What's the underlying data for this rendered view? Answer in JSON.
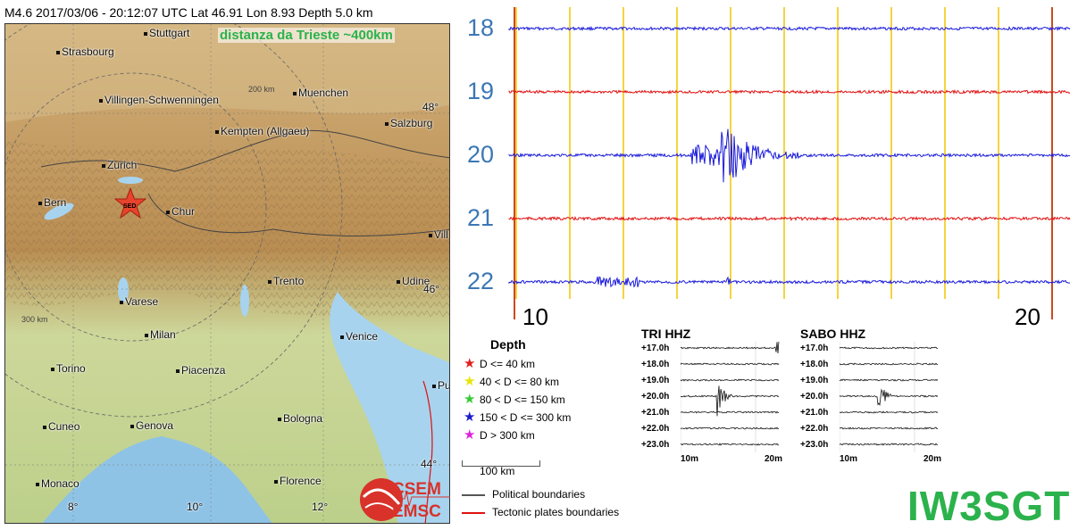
{
  "header": {
    "text": "M4.6  2017/03/06 - 20:12:07 UTC  Lat 46.91  Lon 8.93  Depth 5.0 km"
  },
  "map": {
    "distance_note": "distanza da Trieste ~400km",
    "epicenter_label": "SED",
    "ring_labels": [
      "200 km",
      "300 km"
    ],
    "cities": [
      {
        "name": "Stuttgart"
      },
      {
        "name": "Strasbourg"
      },
      {
        "name": "Muenchen"
      },
      {
        "name": "Villingen-Schwenningen"
      },
      {
        "name": "Salzburg"
      },
      {
        "name": "Kempten (Allgaeu)"
      },
      {
        "name": "Zurich"
      },
      {
        "name": "Bern"
      },
      {
        "name": "Chur"
      },
      {
        "name": "Trento"
      },
      {
        "name": "Udine"
      },
      {
        "name": "Varese"
      },
      {
        "name": "Milan"
      },
      {
        "name": "Venice"
      },
      {
        "name": "Torino"
      },
      {
        "name": "Piacenza"
      },
      {
        "name": "Cuneo"
      },
      {
        "name": "Genova"
      },
      {
        "name": "Bologna"
      },
      {
        "name": "Monaco"
      },
      {
        "name": "Florence"
      },
      {
        "name": "Vill"
      },
      {
        "name": "Pul"
      }
    ],
    "lat_labels": [
      "48°",
      "46°",
      "44°"
    ],
    "lon_labels": [
      "8°",
      "10°",
      "12°"
    ],
    "colors": {
      "land": "#c9a66b",
      "sea": "#a7d3ee",
      "epicenter": "#e8432c"
    }
  },
  "helicorder": {
    "hours": [
      "18",
      "19",
      "20",
      "21",
      "22"
    ],
    "minute_ticks": [
      "10",
      "20"
    ],
    "colors": {
      "blue": "#1a1adb",
      "red": "#e01010",
      "grid": "#f2c500",
      "edge": "#cc4a1f"
    }
  },
  "legend": {
    "title": "Depth",
    "rows": [
      {
        "label": "D <= 40 km",
        "color": "#e02020"
      },
      {
        "label": "40 < D <= 80 km",
        "color": "#f5f500"
      },
      {
        "label": "80 < D <= 150 km",
        "color": "#33cc33"
      },
      {
        "label": "150 < D <= 300 km",
        "color": "#1a1acc"
      },
      {
        "label": "D > 300 km",
        "color": "#dd22dd"
      }
    ],
    "scale": "100 km",
    "boundaries": [
      {
        "label": "Political boundaries",
        "color": "#555555"
      },
      {
        "label": "Tectonic plates boundaries",
        "color": "#e01010"
      }
    ]
  },
  "logo": {
    "line1": "CSEM",
    "line2": "EMSC"
  },
  "stations": [
    {
      "title": "TRI HHZ",
      "rows": [
        "+17.0h",
        "+18.0h",
        "+19.0h",
        "+20.0h",
        "+21.0h",
        "+22.0h",
        "+23.0h"
      ],
      "x_ticks": [
        "10m",
        "20m"
      ]
    },
    {
      "title": "SABO HHZ",
      "rows": [
        "+17.0h",
        "+18.0h",
        "+19.0h",
        "+20.0h",
        "+21.0h",
        "+22.0h",
        "+23.0h"
      ],
      "x_ticks": [
        "10m",
        "20m"
      ]
    }
  ],
  "callsign": "IW3SGT"
}
